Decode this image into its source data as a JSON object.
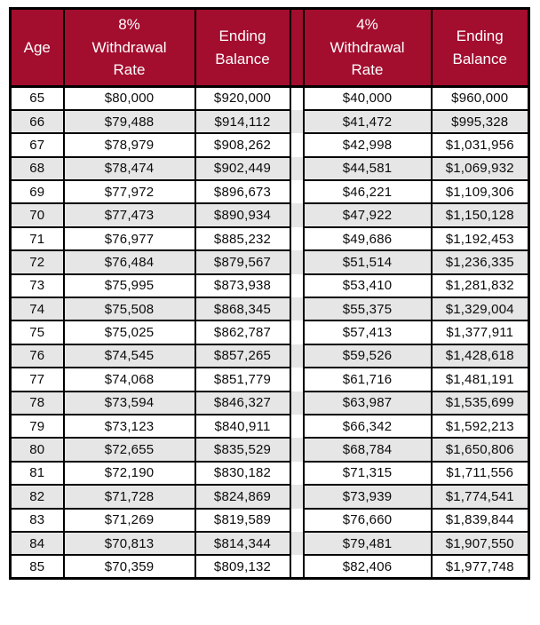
{
  "chart_data": {
    "type": "table",
    "columns": [
      "Age",
      "8% Withdrawal Rate",
      "Ending Balance",
      "4% Withdrawal Rate",
      "Ending Balance"
    ],
    "rows": [
      [
        "65",
        "$80,000",
        "$920,000",
        "$40,000",
        "$960,000"
      ],
      [
        "66",
        "$79,488",
        "$914,112",
        "$41,472",
        "$995,328"
      ],
      [
        "67",
        "$78,979",
        "$908,262",
        "$42,998",
        "$1,031,956"
      ],
      [
        "68",
        "$78,474",
        "$902,449",
        "$44,581",
        "$1,069,932"
      ],
      [
        "69",
        "$77,972",
        "$896,673",
        "$46,221",
        "$1,109,306"
      ],
      [
        "70",
        "$77,473",
        "$890,934",
        "$47,922",
        "$1,150,128"
      ],
      [
        "71",
        "$76,977",
        "$885,232",
        "$49,686",
        "$1,192,453"
      ],
      [
        "72",
        "$76,484",
        "$879,567",
        "$51,514",
        "$1,236,335"
      ],
      [
        "73",
        "$75,995",
        "$873,938",
        "$53,410",
        "$1,281,832"
      ],
      [
        "74",
        "$75,508",
        "$868,345",
        "$55,375",
        "$1,329,004"
      ],
      [
        "75",
        "$75,025",
        "$862,787",
        "$57,413",
        "$1,377,911"
      ],
      [
        "76",
        "$74,545",
        "$857,265",
        "$59,526",
        "$1,428,618"
      ],
      [
        "77",
        "$74,068",
        "$851,779",
        "$61,716",
        "$1,481,191"
      ],
      [
        "78",
        "$73,594",
        "$846,327",
        "$63,987",
        "$1,535,699"
      ],
      [
        "79",
        "$73,123",
        "$840,911",
        "$66,342",
        "$1,592,213"
      ],
      [
        "80",
        "$72,655",
        "$835,529",
        "$68,784",
        "$1,650,806"
      ],
      [
        "81",
        "$72,190",
        "$830,182",
        "$71,315",
        "$1,711,556"
      ],
      [
        "82",
        "$71,728",
        "$824,869",
        "$73,939",
        "$1,774,541"
      ],
      [
        "83",
        "$71,269",
        "$819,589",
        "$76,660",
        "$1,839,844"
      ],
      [
        "84",
        "$70,813",
        "$814,344",
        "$79,481",
        "$1,907,550"
      ],
      [
        "85",
        "$70,359",
        "$809,132",
        "$82,406",
        "$1,977,748"
      ]
    ]
  },
  "header": {
    "age": "Age",
    "withdrawal_8": "8%\nWithdrawal\nRate",
    "ending_balance_8": "Ending\nBalance",
    "gap": "",
    "withdrawal_4": "4%\nWithdrawal\nRate",
    "ending_balance_4": "Ending\nBalance"
  },
  "colors": {
    "header_bg": "#a30d2e",
    "header_text": "#ffffff",
    "stripe": "#e7e6e6",
    "border": "#000000"
  }
}
